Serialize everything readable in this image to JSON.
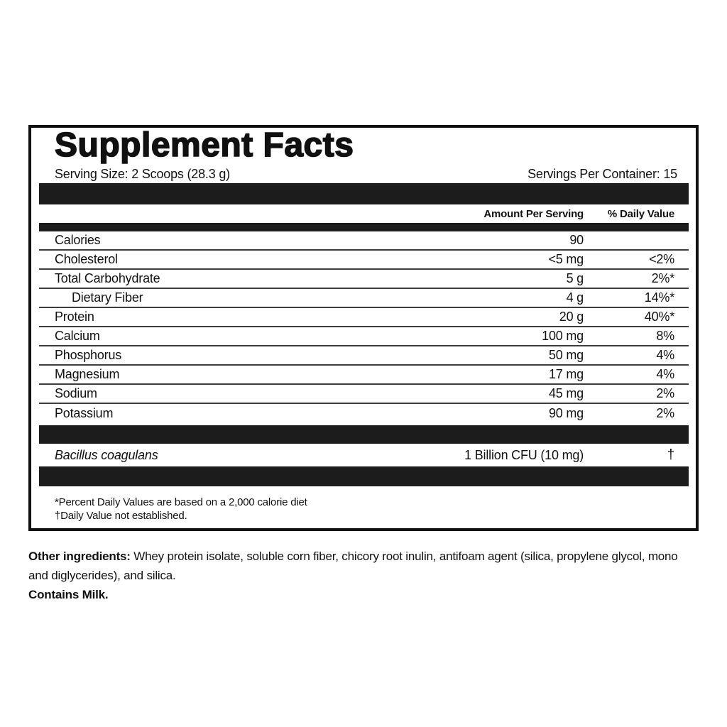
{
  "supplement_facts": {
    "title": "Supplement Facts",
    "serving_size": "Serving Size: 2 Scoops (28.3 g)",
    "servings_per_container": "Servings Per Container: 15",
    "column_headers": {
      "amount": "Amount Per Serving",
      "daily_value": "% Daily Value"
    },
    "nutrients": [
      {
        "name": "Calories",
        "amount": "90",
        "dv": ""
      },
      {
        "name": "Cholesterol",
        "amount": "<5 mg",
        "dv": "<2%"
      },
      {
        "name": "Total Carbohydrate",
        "amount": "5 g",
        "dv": "2%*"
      },
      {
        "name": "Dietary Fiber",
        "amount": "4 g",
        "dv": "14%*",
        "indent": true
      },
      {
        "name": "Protein",
        "amount": "20 g",
        "dv": "40%*"
      },
      {
        "name": "Calcium",
        "amount": "100 mg",
        "dv": "8%"
      },
      {
        "name": "Phosphorus",
        "amount": "50 mg",
        "dv": "4%"
      },
      {
        "name": "Magnesium",
        "amount": "17 mg",
        "dv": "4%"
      },
      {
        "name": "Sodium",
        "amount": "45 mg",
        "dv": "2%"
      },
      {
        "name": "Potassium",
        "amount": "90 mg",
        "dv": "2%"
      }
    ],
    "probiotic": {
      "name": "Bacillus coagulans",
      "amount": "1 Billion CFU (10 mg)",
      "dv": "†"
    },
    "footnotes": [
      "*Percent Daily Values are based on a 2,000 calorie diet",
      "†Daily Value not established."
    ]
  },
  "other_ingredients": {
    "label": "Other ingredients:",
    "text": " Whey protein isolate, soluble corn fiber, chicory root inulin, antifoam agent (silica, propylene glycol, mono and diglycerides), and silica.",
    "contains": "Contains Milk."
  },
  "colors": {
    "text": "#111111",
    "bar": "#1c1c1c",
    "divider": "#3d3d3d",
    "border": "#111111",
    "background": "#ffffff"
  }
}
